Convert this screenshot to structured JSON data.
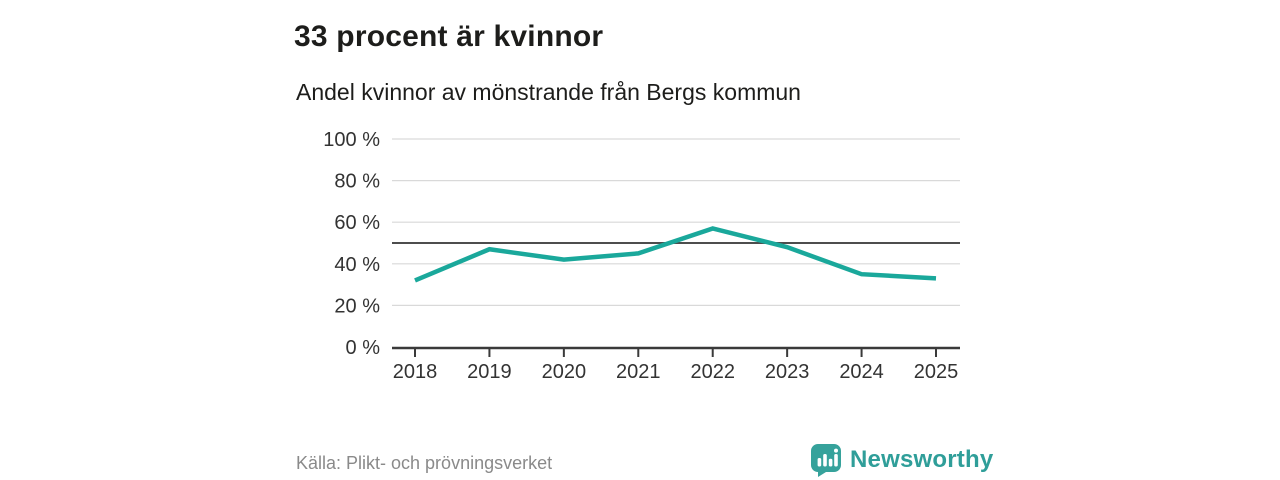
{
  "header": {
    "title": "33 procent är kvinnor"
  },
  "chart_data": {
    "type": "line",
    "title": "Andel kvinnor av mönstrande från Bergs kommun",
    "categories": [
      "2018",
      "2019",
      "2020",
      "2021",
      "2022",
      "2023",
      "2024",
      "2025"
    ],
    "series": [
      {
        "name": "Andel kvinnor av mönstrande",
        "values": [
          32,
          47,
          42,
          45,
          57,
          48,
          35,
          33
        ]
      }
    ],
    "xlabel": "",
    "ylabel": "",
    "ylim": [
      0,
      100
    ],
    "yticks": [
      0,
      20,
      40,
      60,
      80,
      100
    ],
    "ytick_suffix": " %",
    "ytick_labels": [
      "0 %",
      "20 %",
      "40 %",
      "60 %",
      "80 %",
      "100 %"
    ],
    "reference_line": 50,
    "grid": true,
    "legend": "none",
    "line_color": "#1aa89b",
    "reference_line_color": "#4d4d4d",
    "gridline_color": "#d9d9d9",
    "axis_color": "#3a3a3a",
    "tick_label_color": "#333333"
  },
  "footer": {
    "source": "Källa: Plikt- och prövningsverket",
    "brand": "Newsworthy"
  },
  "icons": {
    "logo": "bar-chart-speech-bubble-icon"
  },
  "colors": {
    "accent": "#1aa89b",
    "brand_teal": "#36a29b",
    "text_dark": "#1d1d1b",
    "text_gray": "#8a8a8a"
  }
}
